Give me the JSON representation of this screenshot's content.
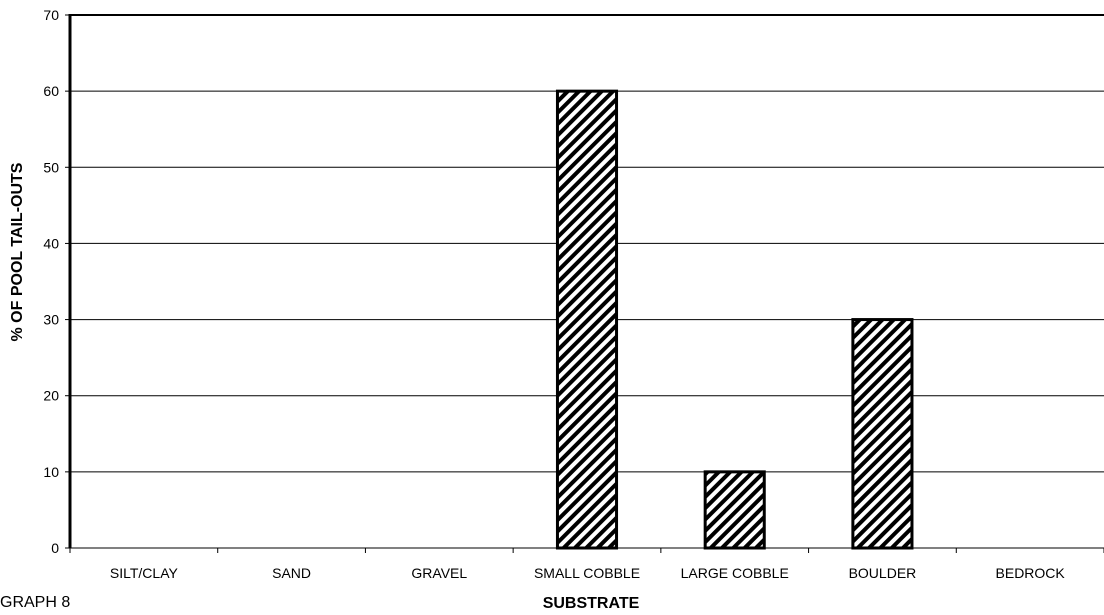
{
  "caption": "GRAPH 8",
  "chart_data": {
    "type": "bar",
    "title": "",
    "xlabel": "SUBSTRATE",
    "ylabel": "% OF POOL TAIL-OUTS",
    "categories": [
      "SILT/CLAY",
      "SAND",
      "GRAVEL",
      "SMALL COBBLE",
      "LARGE COBBLE",
      "BOULDER",
      "BEDROCK"
    ],
    "values": [
      0,
      0,
      0,
      60,
      10,
      30,
      0
    ],
    "ylim": [
      0,
      70
    ],
    "yticks": [
      0,
      10,
      20,
      30,
      40,
      50,
      60,
      70
    ],
    "grid": true,
    "legend": "none",
    "bar_fill": "diagonal-hatch",
    "colors": {
      "bar_stroke": "#000000",
      "hatch": "#000000",
      "background": "#ffffff",
      "gridline": "#000000"
    }
  }
}
